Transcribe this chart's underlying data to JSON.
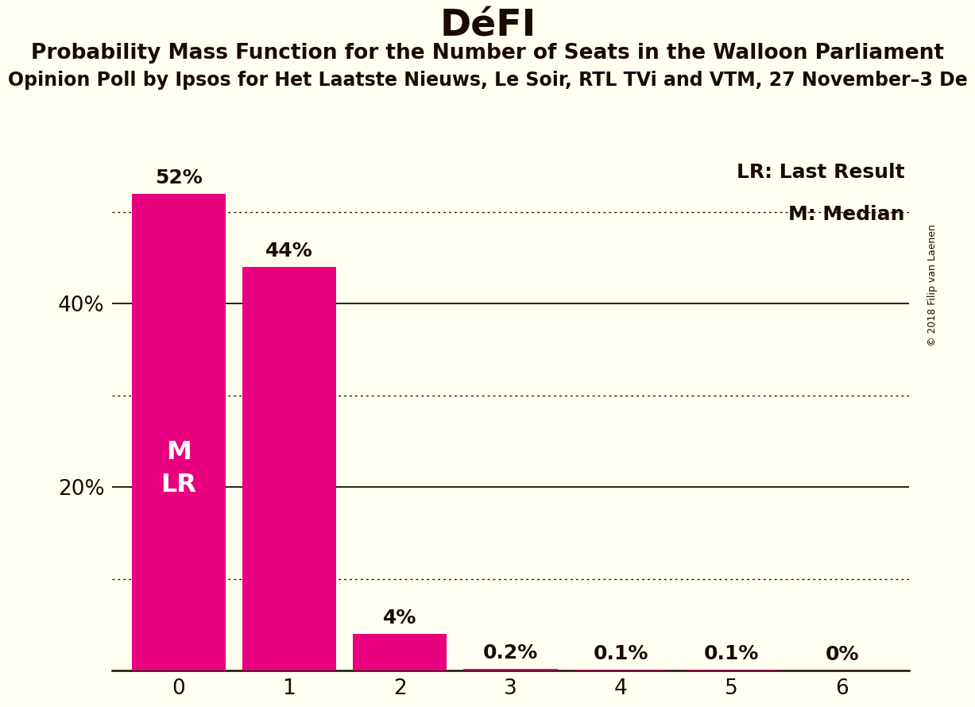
{
  "title": "DéFI",
  "subtitle1": "Probability Mass Function for the Number of Seats in the Walloon Parliament",
  "subtitle2": "Opinion Poll by Ipsos for Het Laatste Nieuws, Le Soir, RTL TVi and VTM, 27 November–3 De",
  "copyright": "© 2018 Filip van Laenen",
  "categories": [
    0,
    1,
    2,
    3,
    4,
    5,
    6
  ],
  "values": [
    52,
    44,
    4,
    0.2,
    0.1,
    0.1,
    0
  ],
  "bar_color": "#E8007F",
  "background_color": "#FFFFF0",
  "bar_labels": [
    "52%",
    "44%",
    "4%",
    "0.2%",
    "0.1%",
    "0.1%",
    "0%"
  ],
  "bar_annotation": "M\nLR",
  "legend_lr": "LR: Last Result",
  "legend_m": "M: Median",
  "yticks": [
    20,
    40
  ],
  "ylim": [
    0,
    58
  ],
  "dotted_lines": [
    10,
    30,
    50
  ],
  "solid_lines": [
    20,
    40
  ],
  "title_fontsize": 34,
  "subtitle1_fontsize": 19,
  "subtitle2_fontsize": 17,
  "axis_tick_fontsize": 19,
  "bar_label_fontsize": 18,
  "annotation_fontsize": 23,
  "legend_fontsize": 18,
  "copyright_fontsize": 9
}
